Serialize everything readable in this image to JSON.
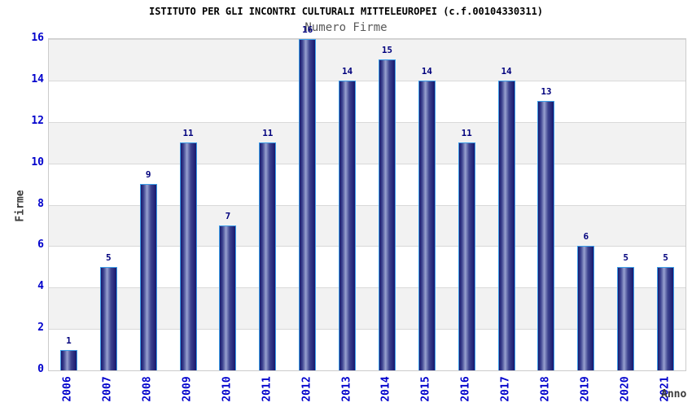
{
  "title": "ISTITUTO PER GLI INCONTRI CULTURALI MITTELEUROPEI (c.f.00104330311)",
  "chart_data": {
    "type": "bar",
    "title": "Numero Firme",
    "xlabel": "Anno",
    "ylabel": "Firme",
    "categories": [
      "2006",
      "2007",
      "2008",
      "2009",
      "2010",
      "2011",
      "2012",
      "2013",
      "2014",
      "2015",
      "2016",
      "2017",
      "2018",
      "2019",
      "2020",
      "2021"
    ],
    "values": [
      1,
      5,
      9,
      11,
      7,
      11,
      16,
      14,
      15,
      14,
      11,
      14,
      13,
      6,
      5,
      5
    ],
    "ylim": [
      0,
      16
    ],
    "ytick_step": 2,
    "yticks": [
      0,
      2,
      4,
      6,
      8,
      10,
      12,
      14,
      16
    ],
    "grid": true,
    "legend": "none",
    "band_pattern": "alternating horizontal bands every 2 units, gray band at top (14-16)",
    "colors": {
      "title_text": "#000000",
      "subtitle_text": "#595959",
      "axis_title_text": "#3a3a3a",
      "tick_label": "#0000cc",
      "value_label": "#00007d",
      "bar_edge": "#17176d",
      "bar_dark": "#3e4490",
      "bar_mid": "#98a1d0",
      "bar_cap": "#3d9ee8",
      "band_gray": "#f2f2f2",
      "band_white": "#ffffff",
      "gridline": "#d9d9d9",
      "plot_border": "#cccccc",
      "background": "#ffffff"
    }
  }
}
